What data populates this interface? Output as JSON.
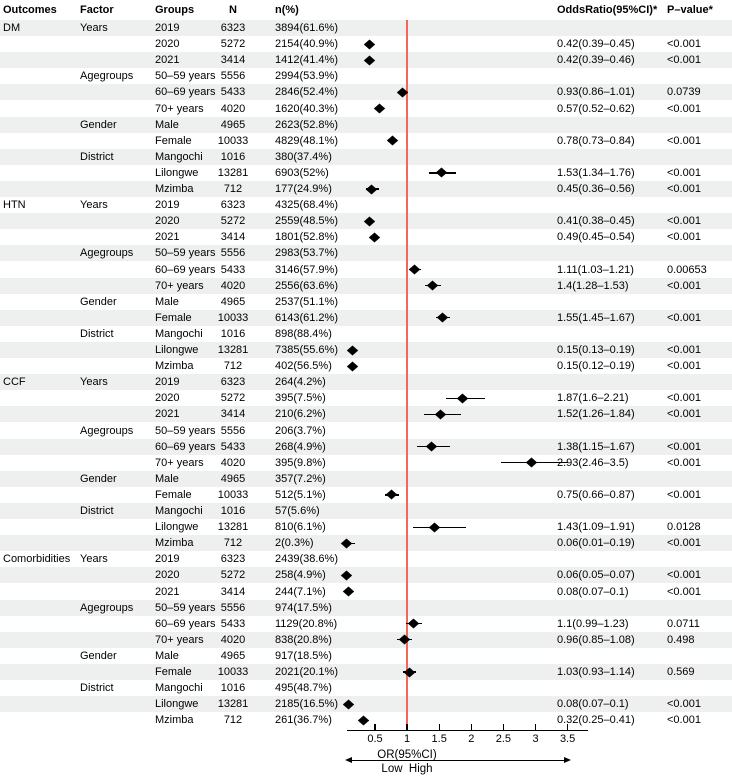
{
  "figure": {
    "axis": {
      "tick_labels": [
        "0.5",
        "1",
        "1.5",
        "2",
        "2.5",
        "3",
        "3.5"
      ],
      "arrow_label": "OR(95%CI)",
      "low_high_label": "Low  High"
    },
    "colors": {
      "band": "#eef0ef",
      "reference_line": "#f4655c",
      "marker": "#000000",
      "text": "#000000"
    }
  },
  "chart_data": {
    "type": "forest",
    "title": "",
    "xlabel": "OR(95%CI)",
    "x_ticks": [
      0.5,
      1,
      1.5,
      2,
      2.5,
      3,
      3.5
    ],
    "xlim": [
      0.45,
      3.55
    ],
    "reference_line": 1,
    "legend": "none",
    "columns": [
      "Outcomes",
      "Factor",
      "Groups",
      "N",
      "n(%)",
      "OddsRatio(95%CI)*",
      "P–value*"
    ],
    "rows": [
      {
        "outcome": "DM",
        "factor": "Years",
        "group": "2019",
        "n": "6323",
        "n_pct": "3894(61.6%)",
        "or_ci": "",
        "p": "",
        "est": null,
        "lo": null,
        "hi": null
      },
      {
        "outcome": "",
        "factor": "",
        "group": "2020",
        "n": "5272",
        "n_pct": "2154(40.9%)",
        "or_ci": "0.42(0.39–0.45)",
        "p": "<0.001",
        "est": 0.42,
        "lo": 0.39,
        "hi": 0.45
      },
      {
        "outcome": "",
        "factor": "",
        "group": "2021",
        "n": "3414",
        "n_pct": "1412(41.4%)",
        "or_ci": "0.42(0.39–0.46)",
        "p": "<0.001",
        "est": 0.42,
        "lo": 0.39,
        "hi": 0.46
      },
      {
        "outcome": "",
        "factor": "Agegroups",
        "group": "50–59 years",
        "n": "5556",
        "n_pct": "2994(53.9%)",
        "or_ci": "",
        "p": "",
        "est": null,
        "lo": null,
        "hi": null
      },
      {
        "outcome": "",
        "factor": "",
        "group": "60–69 years",
        "n": "5433",
        "n_pct": "2846(52.4%)",
        "or_ci": "0.93(0.86–1.01)",
        "p": "0.0739",
        "est": 0.93,
        "lo": 0.86,
        "hi": 1.01
      },
      {
        "outcome": "",
        "factor": "",
        "group": "70+ years",
        "n": "4020",
        "n_pct": "1620(40.3%)",
        "or_ci": "0.57(0.52–0.62)",
        "p": "<0.001",
        "est": 0.57,
        "lo": 0.52,
        "hi": 0.62
      },
      {
        "outcome": "",
        "factor": "Gender",
        "group": "Male",
        "n": "4965",
        "n_pct": "2623(52.8%)",
        "or_ci": "",
        "p": "",
        "est": null,
        "lo": null,
        "hi": null
      },
      {
        "outcome": "",
        "factor": "",
        "group": "Female",
        "n": "10033",
        "n_pct": "4829(48.1%)",
        "or_ci": "0.78(0.73–0.84)",
        "p": "<0.001",
        "est": 0.78,
        "lo": 0.73,
        "hi": 0.84
      },
      {
        "outcome": "",
        "factor": "District",
        "group": "Mangochi",
        "n": "1016",
        "n_pct": "380(37.4%)",
        "or_ci": "",
        "p": "",
        "est": null,
        "lo": null,
        "hi": null
      },
      {
        "outcome": "",
        "factor": "",
        "group": "Lilongwe",
        "n": "13281",
        "n_pct": "6903(52%)",
        "or_ci": "1.53(1.34–1.76)",
        "p": "<0.001",
        "est": 1.53,
        "lo": 1.34,
        "hi": 1.76
      },
      {
        "outcome": "",
        "factor": "",
        "group": "Mzimba",
        "n": "712",
        "n_pct": "177(24.9%)",
        "or_ci": "0.45(0.36–0.56)",
        "p": "<0.001",
        "est": 0.45,
        "lo": 0.36,
        "hi": 0.56
      },
      {
        "outcome": "HTN",
        "factor": "Years",
        "group": "2019",
        "n": "6323",
        "n_pct": "4325(68.4%)",
        "or_ci": "",
        "p": "",
        "est": null,
        "lo": null,
        "hi": null
      },
      {
        "outcome": "",
        "factor": "",
        "group": "2020",
        "n": "5272",
        "n_pct": "2559(48.5%)",
        "or_ci": "0.41(0.38–0.45)",
        "p": "<0.001",
        "est": 0.41,
        "lo": 0.38,
        "hi": 0.45
      },
      {
        "outcome": "",
        "factor": "",
        "group": "2021",
        "n": "3414",
        "n_pct": "1801(52.8%)",
        "or_ci": "0.49(0.45–0.54)",
        "p": "<0.001",
        "est": 0.49,
        "lo": 0.45,
        "hi": 0.54
      },
      {
        "outcome": "",
        "factor": "Agegroups",
        "group": "50–59 years",
        "n": "5556",
        "n_pct": "2983(53.7%)",
        "or_ci": "",
        "p": "",
        "est": null,
        "lo": null,
        "hi": null
      },
      {
        "outcome": "",
        "factor": "",
        "group": "60–69 years",
        "n": "5433",
        "n_pct": "3146(57.9%)",
        "or_ci": "1.11(1.03–1.21)",
        "p": "0.00653",
        "est": 1.11,
        "lo": 1.03,
        "hi": 1.21
      },
      {
        "outcome": "",
        "factor": "",
        "group": "70+ years",
        "n": "4020",
        "n_pct": "2556(63.6%)",
        "or_ci": "1.4(1.28–1.53)",
        "p": "<0.001",
        "est": 1.4,
        "lo": 1.28,
        "hi": 1.53
      },
      {
        "outcome": "",
        "factor": "Gender",
        "group": "Male",
        "n": "4965",
        "n_pct": "2537(51.1%)",
        "or_ci": "",
        "p": "",
        "est": null,
        "lo": null,
        "hi": null
      },
      {
        "outcome": "",
        "factor": "",
        "group": "Female",
        "n": "10033",
        "n_pct": "6143(61.2%)",
        "or_ci": "1.55(1.45–1.67)",
        "p": "<0.001",
        "est": 1.55,
        "lo": 1.45,
        "hi": 1.67
      },
      {
        "outcome": "",
        "factor": "District",
        "group": "Mangochi",
        "n": "1016",
        "n_pct": "898(88.4%)",
        "or_ci": "",
        "p": "",
        "est": null,
        "lo": null,
        "hi": null
      },
      {
        "outcome": "",
        "factor": "",
        "group": "Lilongwe",
        "n": "13281",
        "n_pct": "7385(55.6%)",
        "or_ci": "0.15(0.13–0.19)",
        "p": "<0.001",
        "est": 0.15,
        "lo": 0.13,
        "hi": 0.19
      },
      {
        "outcome": "",
        "factor": "",
        "group": "Mzimba",
        "n": "712",
        "n_pct": "402(56.5%)",
        "or_ci": "0.15(0.12–0.19)",
        "p": "<0.001",
        "est": 0.15,
        "lo": 0.12,
        "hi": 0.19
      },
      {
        "outcome": "CCF",
        "factor": "Years",
        "group": "2019",
        "n": "6323",
        "n_pct": "264(4.2%)",
        "or_ci": "",
        "p": "",
        "est": null,
        "lo": null,
        "hi": null
      },
      {
        "outcome": "",
        "factor": "",
        "group": "2020",
        "n": "5272",
        "n_pct": "395(7.5%)",
        "or_ci": "1.87(1.6–2.21)",
        "p": "<0.001",
        "est": 1.87,
        "lo": 1.6,
        "hi": 2.21
      },
      {
        "outcome": "",
        "factor": "",
        "group": "2021",
        "n": "3414",
        "n_pct": "210(6.2%)",
        "or_ci": "1.52(1.26–1.84)",
        "p": "<0.001",
        "est": 1.52,
        "lo": 1.26,
        "hi": 1.84
      },
      {
        "outcome": "",
        "factor": "Agegroups",
        "group": "50–59 years",
        "n": "5556",
        "n_pct": "206(3.7%)",
        "or_ci": "",
        "p": "",
        "est": null,
        "lo": null,
        "hi": null
      },
      {
        "outcome": "",
        "factor": "",
        "group": "60–69 years",
        "n": "5433",
        "n_pct": "268(4.9%)",
        "or_ci": "1.38(1.15–1.67)",
        "p": "<0.001",
        "est": 1.38,
        "lo": 1.15,
        "hi": 1.67
      },
      {
        "outcome": "",
        "factor": "",
        "group": "70+ years",
        "n": "4020",
        "n_pct": "395(9.8%)",
        "or_ci": "2.93(2.46–3.5)",
        "p": "<0.001",
        "est": 2.93,
        "lo": 2.46,
        "hi": 3.5
      },
      {
        "outcome": "",
        "factor": "Gender",
        "group": "Male",
        "n": "4965",
        "n_pct": "357(7.2%)",
        "or_ci": "",
        "p": "",
        "est": null,
        "lo": null,
        "hi": null
      },
      {
        "outcome": "",
        "factor": "",
        "group": "Female",
        "n": "10033",
        "n_pct": "512(5.1%)",
        "or_ci": "0.75(0.66–0.87)",
        "p": "<0.001",
        "est": 0.75,
        "lo": 0.66,
        "hi": 0.87
      },
      {
        "outcome": "",
        "factor": "District",
        "group": "Mangochi",
        "n": "1016",
        "n_pct": "57(5.6%)",
        "or_ci": "",
        "p": "",
        "est": null,
        "lo": null,
        "hi": null
      },
      {
        "outcome": "",
        "factor": "",
        "group": "Lilongwe",
        "n": "13281",
        "n_pct": "810(6.1%)",
        "or_ci": "1.43(1.09–1.91)",
        "p": "0.0128",
        "est": 1.43,
        "lo": 1.09,
        "hi": 1.91
      },
      {
        "outcome": "",
        "factor": "",
        "group": "Mzimba",
        "n": "712",
        "n_pct": "2(0.3%)",
        "or_ci": "0.06(0.01–0.19)",
        "p": "<0.001",
        "est": 0.06,
        "lo": 0.01,
        "hi": 0.19
      },
      {
        "outcome": "Comorbidities",
        "factor": "Years",
        "group": "2019",
        "n": "6323",
        "n_pct": "2439(38.6%)",
        "or_ci": "",
        "p": "",
        "est": null,
        "lo": null,
        "hi": null
      },
      {
        "outcome": "",
        "factor": "",
        "group": "2020",
        "n": "5272",
        "n_pct": "258(4.9%)",
        "or_ci": "0.06(0.05–0.07)",
        "p": "<0.001",
        "est": 0.06,
        "lo": 0.05,
        "hi": 0.07
      },
      {
        "outcome": "",
        "factor": "",
        "group": "2021",
        "n": "3414",
        "n_pct": "244(7.1%)",
        "or_ci": "0.08(0.07–0.1)",
        "p": "<0.001",
        "est": 0.08,
        "lo": 0.07,
        "hi": 0.1
      },
      {
        "outcome": "",
        "factor": "Agegroups",
        "group": "50–59 years",
        "n": "5556",
        "n_pct": "974(17.5%)",
        "or_ci": "",
        "p": "",
        "est": null,
        "lo": null,
        "hi": null
      },
      {
        "outcome": "",
        "factor": "",
        "group": "60–69 years",
        "n": "5433",
        "n_pct": "1129(20.8%)",
        "or_ci": "1.1(0.99–1.23)",
        "p": "0.0711",
        "est": 1.1,
        "lo": 0.99,
        "hi": 1.23
      },
      {
        "outcome": "",
        "factor": "",
        "group": "70+ years",
        "n": "4020",
        "n_pct": "838(20.8%)",
        "or_ci": "0.96(0.85–1.08)",
        "p": "0.498",
        "est": 0.96,
        "lo": 0.85,
        "hi": 1.08
      },
      {
        "outcome": "",
        "factor": "Gender",
        "group": "Male",
        "n": "4965",
        "n_pct": "917(18.5%)",
        "or_ci": "",
        "p": "",
        "est": null,
        "lo": null,
        "hi": null
      },
      {
        "outcome": "",
        "factor": "",
        "group": "Female",
        "n": "10033",
        "n_pct": "2021(20.1%)",
        "or_ci": "1.03(0.93–1.14)",
        "p": "0.569",
        "est": 1.03,
        "lo": 0.93,
        "hi": 1.14
      },
      {
        "outcome": "",
        "factor": "District",
        "group": "Mangochi",
        "n": "1016",
        "n_pct": "495(48.7%)",
        "or_ci": "",
        "p": "",
        "est": null,
        "lo": null,
        "hi": null
      },
      {
        "outcome": "",
        "factor": "",
        "group": "Lilongwe",
        "n": "13281",
        "n_pct": "2185(16.5%)",
        "or_ci": "0.08(0.07–0.1)",
        "p": "<0.001",
        "est": 0.08,
        "lo": 0.07,
        "hi": 0.1
      },
      {
        "outcome": "",
        "factor": "",
        "group": "Mzimba",
        "n": "712",
        "n_pct": "261(36.7%)",
        "or_ci": "0.32(0.25–0.41)",
        "p": "<0.001",
        "est": 0.32,
        "lo": 0.25,
        "hi": 0.41
      }
    ]
  }
}
